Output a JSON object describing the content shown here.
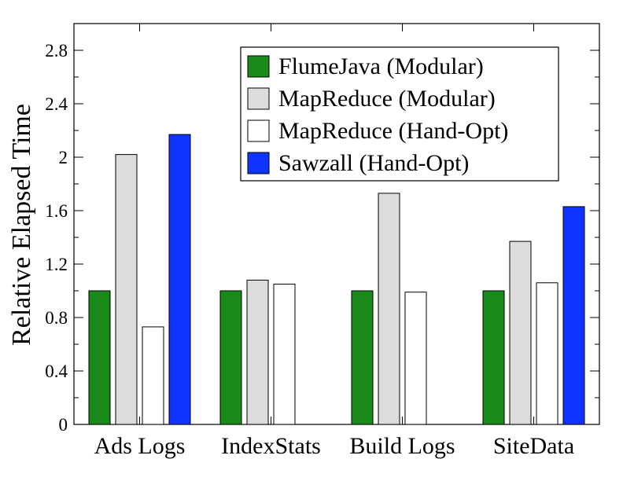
{
  "chart_data": {
    "type": "bar",
    "title": "",
    "xlabel": "",
    "ylabel": "Relative Elapsed Time",
    "ylim": [
      0,
      3.0
    ],
    "yticks": [
      0,
      0.4,
      0.8,
      1.2,
      1.6,
      2,
      2.4,
      2.8
    ],
    "ytick_labels": [
      "0",
      "0.4",
      "0.8",
      "1.2",
      "1.6",
      "2",
      "2.4",
      "2.8"
    ],
    "categories": [
      "Ads Logs",
      "IndexStats",
      "Build Logs",
      "SiteData"
    ],
    "series": [
      {
        "name": "FlumeJava (Modular)",
        "color": "#1a8a1a",
        "values": [
          1.0,
          1.0,
          1.0,
          1.0
        ]
      },
      {
        "name": "MapReduce (Modular)",
        "color": "#dcdcdc",
        "values": [
          2.02,
          1.08,
          1.73,
          1.37
        ]
      },
      {
        "name": "MapReduce (Hand-Opt)",
        "color": "#ffffff",
        "values": [
          0.73,
          1.05,
          0.99,
          1.06
        ]
      },
      {
        "name": "Sawzall (Hand-Opt)",
        "color": "#1033ff",
        "values": [
          2.17,
          null,
          null,
          1.63
        ]
      }
    ],
    "grid": false,
    "legend_position": "top-right"
  }
}
